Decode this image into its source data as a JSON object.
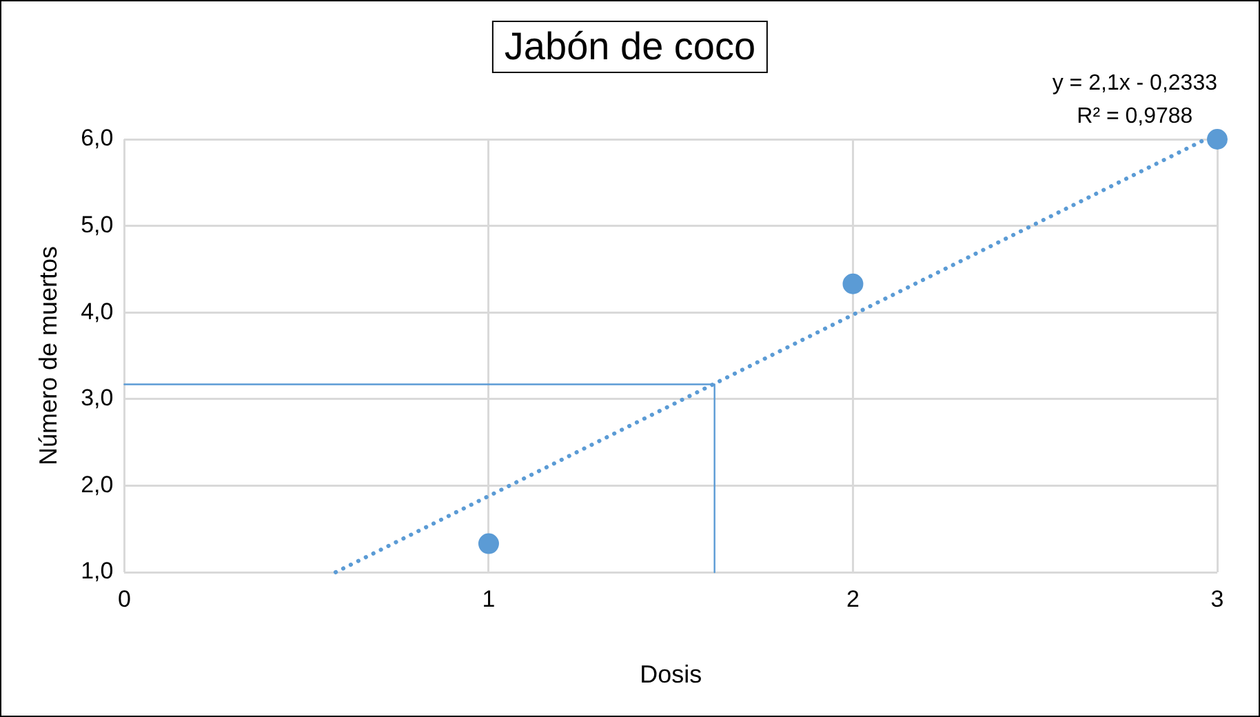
{
  "chart_data": {
    "type": "scatter",
    "title": "Jabón de coco",
    "xlabel": "Dosis",
    "ylabel": "Número de muertos",
    "annotations": [
      "y = 2,1x - 0,2333",
      "R² = 0,9788"
    ],
    "xlim": [
      0,
      3
    ],
    "xticks": [
      0,
      1,
      2,
      3
    ],
    "ylim": [
      1,
      6
    ],
    "yticks": [
      {
        "value": 1,
        "label": "1,0"
      },
      {
        "value": 2,
        "label": "2,0"
      },
      {
        "value": 3,
        "label": "3,0"
      },
      {
        "value": 4,
        "label": "4,0"
      },
      {
        "value": 5,
        "label": "5,0"
      },
      {
        "value": 6,
        "label": "6,0"
      }
    ],
    "grid": true,
    "series": [
      {
        "type": "line",
        "color": "#5b9bd5",
        "x": [
          0.58,
          2.968
        ],
        "values": [
          1.0,
          6.0
        ],
        "marker": "none",
        "line_style": "dotted"
      },
      {
        "type": "line",
        "color": "#5b9bd5",
        "x": [
          0,
          1.62,
          1.62
        ],
        "values": [
          3.17,
          3.17,
          1.0
        ],
        "marker": "none",
        "line_style": "solid"
      },
      {
        "type": "scatter",
        "color": "#5b9bd5",
        "x": [
          1,
          2,
          3
        ],
        "values": [
          1.33,
          4.33,
          6.0
        ],
        "marker": "circle"
      }
    ]
  }
}
